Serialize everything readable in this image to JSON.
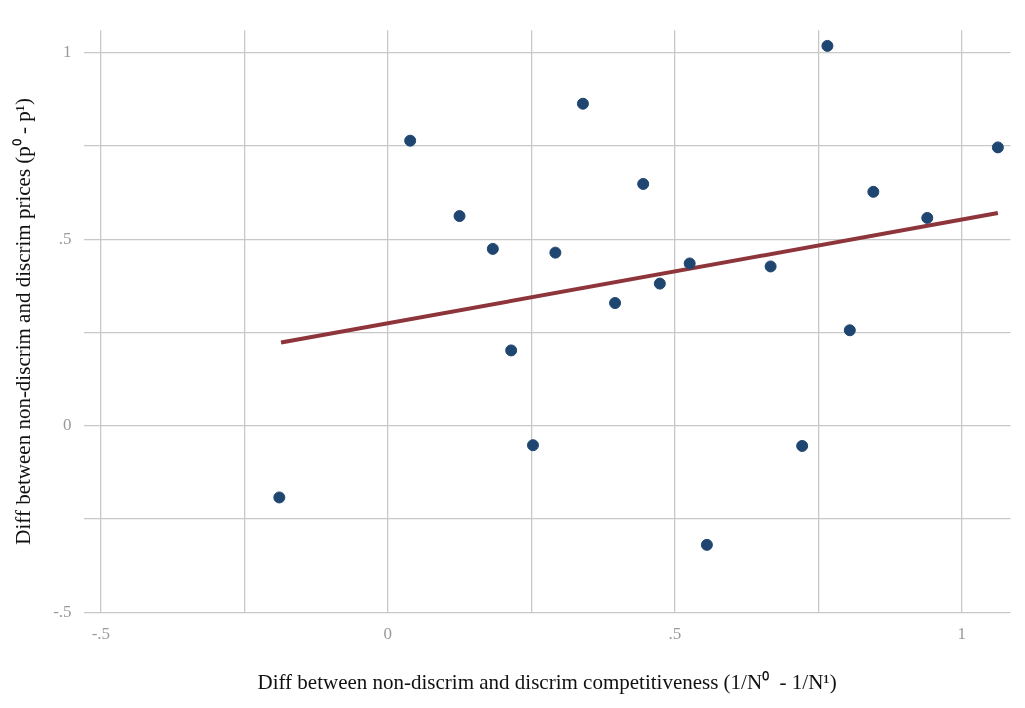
{
  "chart_data": {
    "type": "scatter",
    "xlabel": "Diff between non-discrim and discrim competitiveness (1/N⁰  - 1/N¹)",
    "ylabel": "Diff between non-discrim and discrim prices (p⁰ - p¹)",
    "xlim": [
      -0.53,
      1.085
    ],
    "ylim": [
      -0.5,
      1.06
    ],
    "xticks": [
      {
        "value": -0.5,
        "label": "-.5"
      },
      {
        "value": -0.25,
        "label": null
      },
      0,
      {
        "value": 0.25,
        "label": null
      },
      {
        "value": 0.5,
        "label": ".5"
      },
      {
        "value": 0.75,
        "label": null
      },
      1
    ],
    "yticks": [
      {
        "value": -0.5,
        "label": "-.5"
      },
      {
        "value": -0.25,
        "label": null
      },
      0,
      {
        "value": 0.25,
        "label": null
      },
      {
        "value": 0.5,
        "label": ".5"
      },
      {
        "value": 0.75,
        "label": null
      },
      1
    ],
    "grid": true,
    "x": [
      -0.189,
      0.039,
      0.125,
      0.183,
      0.215,
      0.253,
      0.292,
      0.34,
      0.396,
      0.445,
      0.474,
      0.526,
      0.556,
      0.667,
      0.722,
      0.766,
      0.805,
      0.846,
      0.94,
      1.063
    ],
    "series": [
      {
        "type": "scatter",
        "marker": "circle",
        "color": "#1f4670",
        "values": [
          -0.192,
          0.764,
          0.562,
          0.474,
          0.202,
          -0.052,
          0.464,
          0.863,
          0.329,
          0.648,
          0.381,
          0.435,
          -0.319,
          0.427,
          -0.054,
          1.018,
          0.256,
          0.627,
          0.557,
          0.746
        ]
      },
      {
        "type": "line",
        "color": "#8e353b",
        "x": [
          -0.186,
          1.063
        ],
        "values": [
          0.223,
          0.57
        ]
      }
    ]
  }
}
